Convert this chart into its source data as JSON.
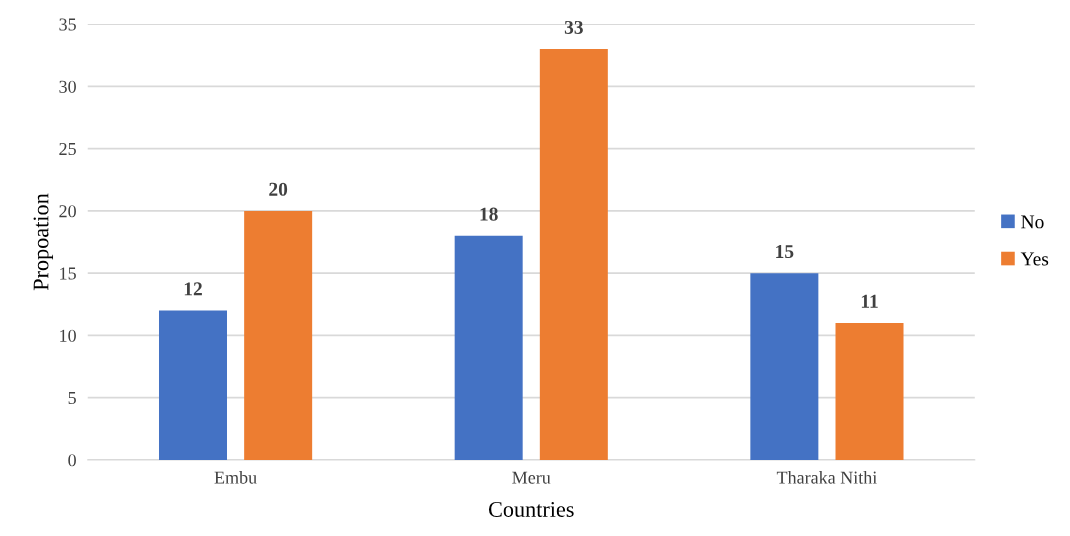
{
  "chart_data": {
    "type": "bar",
    "xlabel": "Countries",
    "ylabel": "Propoation",
    "categories": [
      "Embu",
      "Meru",
      "Tharaka Nithi"
    ],
    "series": [
      {
        "name": "No",
        "color": "#4472c4",
        "values": [
          12,
          18,
          15
        ]
      },
      {
        "name": "Yes",
        "color": "#ed7d31",
        "values": [
          20,
          33,
          11
        ]
      }
    ],
    "ylim": [
      0,
      35
    ],
    "yticks": [
      0,
      5,
      10,
      15,
      20,
      25,
      30,
      35
    ],
    "grid": "y",
    "legend": "right",
    "data_labels": true
  }
}
